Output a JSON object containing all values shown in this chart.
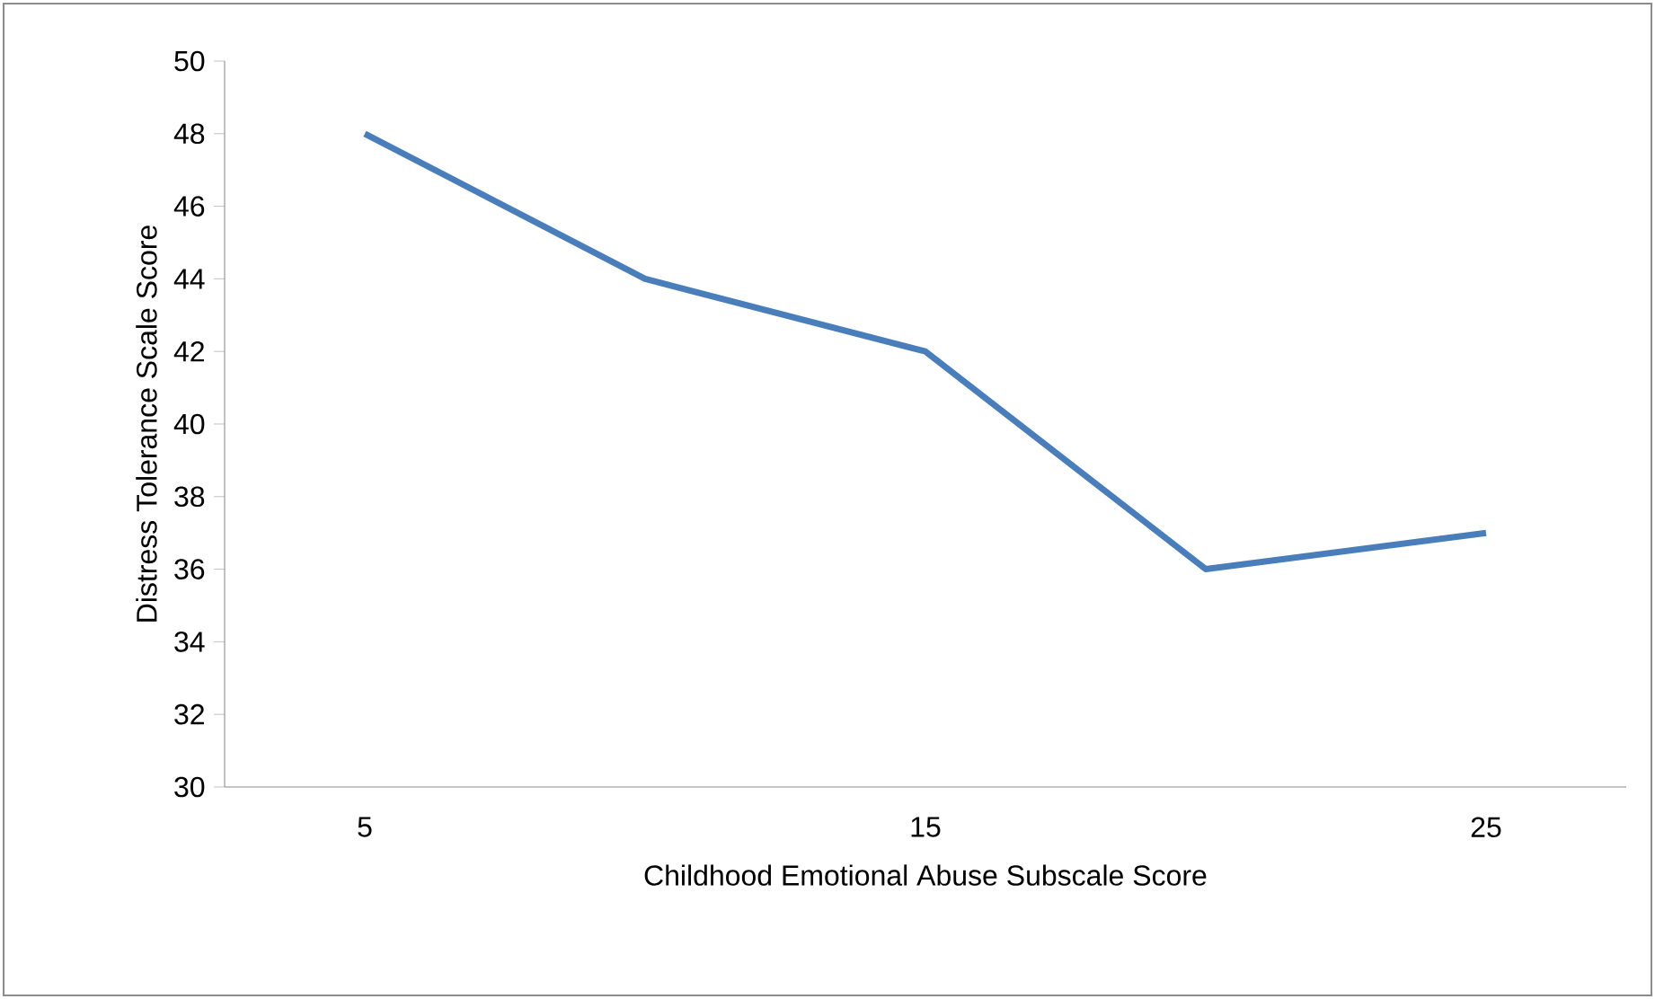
{
  "chart_data": {
    "type": "line",
    "xlabel": "Childhood Emotional Abuse Subscale Score",
    "ylabel": "Distress Tolerance Scale Score",
    "categories": [
      "5",
      null,
      "15",
      null,
      "25"
    ],
    "series": [
      {
        "color": "#4a7ebb",
        "values": [
          48,
          44,
          42,
          36,
          37
        ]
      }
    ],
    "ylim": [
      30,
      50
    ],
    "yticks": [
      30,
      32,
      34,
      36,
      38,
      40,
      42,
      44,
      46,
      48,
      50
    ],
    "grid": false,
    "legend": false,
    "marker": "none",
    "line_style": "solid"
  }
}
